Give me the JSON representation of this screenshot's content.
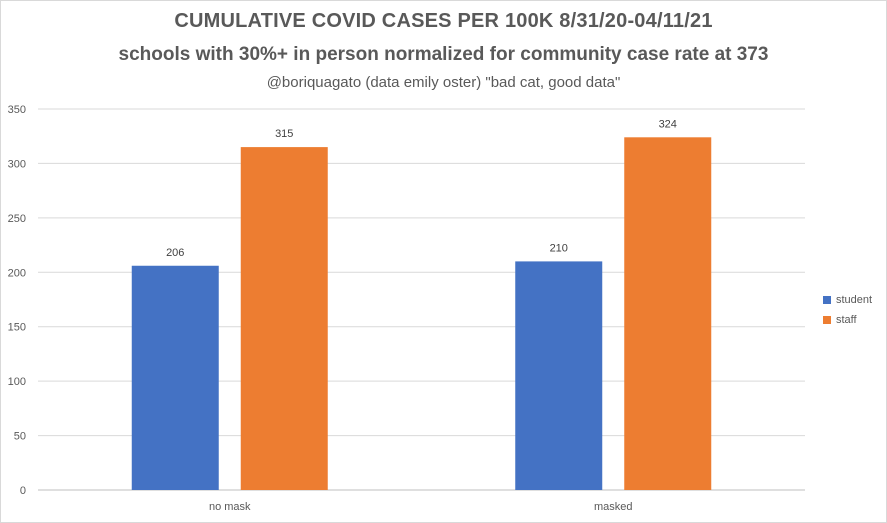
{
  "chart_data": {
    "type": "bar",
    "title": "CUMULATIVE COVID CASES PER 100K 8/31/20-04/11/21",
    "subtitle": "schools with 30%+ in person normalized  for community  case rate at 373",
    "caption": "@boriquagato (data emily oster) \"bad cat, good data\"",
    "categories": [
      "no mask",
      "masked"
    ],
    "series": [
      {
        "name": "student",
        "values": [
          206,
          210
        ],
        "color": "#4472c4"
      },
      {
        "name": "staff",
        "values": [
          315,
          324
        ],
        "color": "#ed7d31"
      }
    ],
    "ylim": [
      0,
      350
    ],
    "yticks": [
      "0",
      "50",
      "100",
      "150",
      "200",
      "250",
      "300",
      "350"
    ],
    "grid": true,
    "legend_position": "right"
  }
}
